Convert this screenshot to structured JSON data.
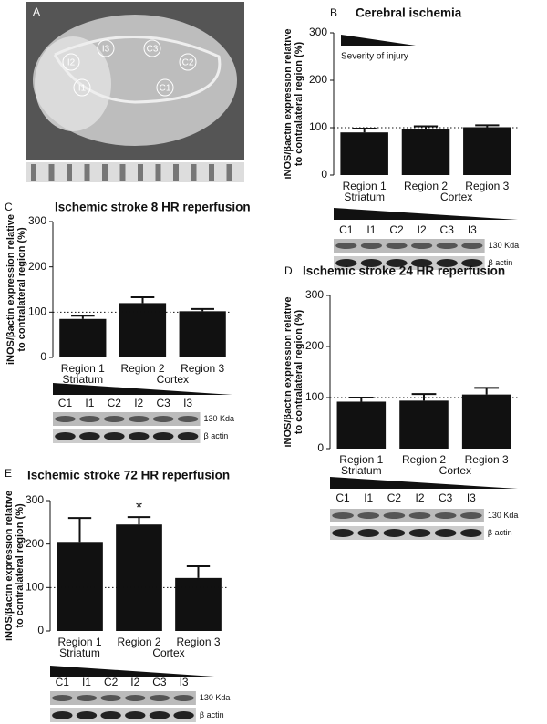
{
  "panel_a": {
    "label": "A",
    "regions": [
      "I2",
      "I3",
      "C3",
      "C2",
      "I1",
      "C1"
    ]
  },
  "chart_data": [
    {
      "type": "bar",
      "panel": "B",
      "title": "Cerebral ischemia",
      "ylabel": [
        "iNOS/βactin expression relative",
        "to contralateral region (%)"
      ],
      "categories": [
        "Region 1",
        "Region 2",
        "Region 3"
      ],
      "values": [
        90,
        97,
        101
      ],
      "errors": [
        8,
        6,
        4
      ],
      "subregions": [
        "Striatum",
        "Cortex"
      ],
      "color": "#111111",
      "ylim": [
        0,
        300
      ],
      "yticks": [
        0,
        100,
        200,
        300
      ],
      "reference_line": 100,
      "severity_label": "Severity of injury",
      "blot": {
        "lanes": [
          "C1",
          "I1",
          "C2",
          "I2",
          "C3",
          "I3"
        ],
        "bands": [
          "130 Kda",
          "β actin"
        ]
      }
    },
    {
      "type": "bar",
      "panel": "C",
      "title": "Ischemic stroke 8 HR reperfusion",
      "ylabel": [
        "iNOS/βactin expression relative",
        "to contralateral region (%)"
      ],
      "categories": [
        "Region 1",
        "Region 2",
        "Region 3"
      ],
      "values": [
        85,
        120,
        102
      ],
      "errors": [
        7,
        13,
        5
      ],
      "subregions": [
        "Striatum",
        "Cortex"
      ],
      "color": "#111111",
      "ylim": [
        0,
        300
      ],
      "yticks": [
        0,
        100,
        200,
        300
      ],
      "reference_line": 100,
      "blot": {
        "lanes": [
          "C1",
          "I1",
          "C2",
          "I2",
          "C3",
          "I3"
        ],
        "bands": [
          "130 Kda",
          "β actin"
        ]
      }
    },
    {
      "type": "bar",
      "panel": "D",
      "title": "Ischemic stroke 24 HR reperfusion",
      "ylabel": [
        "iNOS/βactin expression relative",
        "to contralateral region (%)"
      ],
      "categories": [
        "Region 1",
        "Region 2",
        "Region 3"
      ],
      "values": [
        92,
        94,
        106
      ],
      "errors": [
        8,
        13,
        13
      ],
      "subregions": [
        "Striatum",
        "Cortex"
      ],
      "color": "#111111",
      "ylim": [
        0,
        300
      ],
      "yticks": [
        0,
        100,
        200,
        300
      ],
      "reference_line": 100,
      "blot": {
        "lanes": [
          "C1",
          "I1",
          "C2",
          "I2",
          "C3",
          "I3"
        ],
        "bands": [
          "130 Kda",
          "β actin"
        ]
      }
    },
    {
      "type": "bar",
      "panel": "E",
      "title": "Ischemic stroke 72 HR reperfusion",
      "ylabel": [
        "iNOS/βactin expression relative",
        "to contralateral region (%)"
      ],
      "categories": [
        "Region 1",
        "Region 2",
        "Region 3"
      ],
      "values": [
        205,
        245,
        122
      ],
      "errors": [
        55,
        17,
        27
      ],
      "significance": [
        null,
        "*",
        null
      ],
      "subregions": [
        "Striatum",
        "Cortex"
      ],
      "color": "#111111",
      "ylim": [
        0,
        300
      ],
      "yticks": [
        0,
        100,
        200,
        300
      ],
      "reference_line": 100,
      "blot": {
        "lanes": [
          "C1",
          "I1",
          "C2",
          "I2",
          "C3",
          "I3"
        ],
        "bands": [
          "130 Kda",
          "β actin"
        ]
      }
    }
  ]
}
